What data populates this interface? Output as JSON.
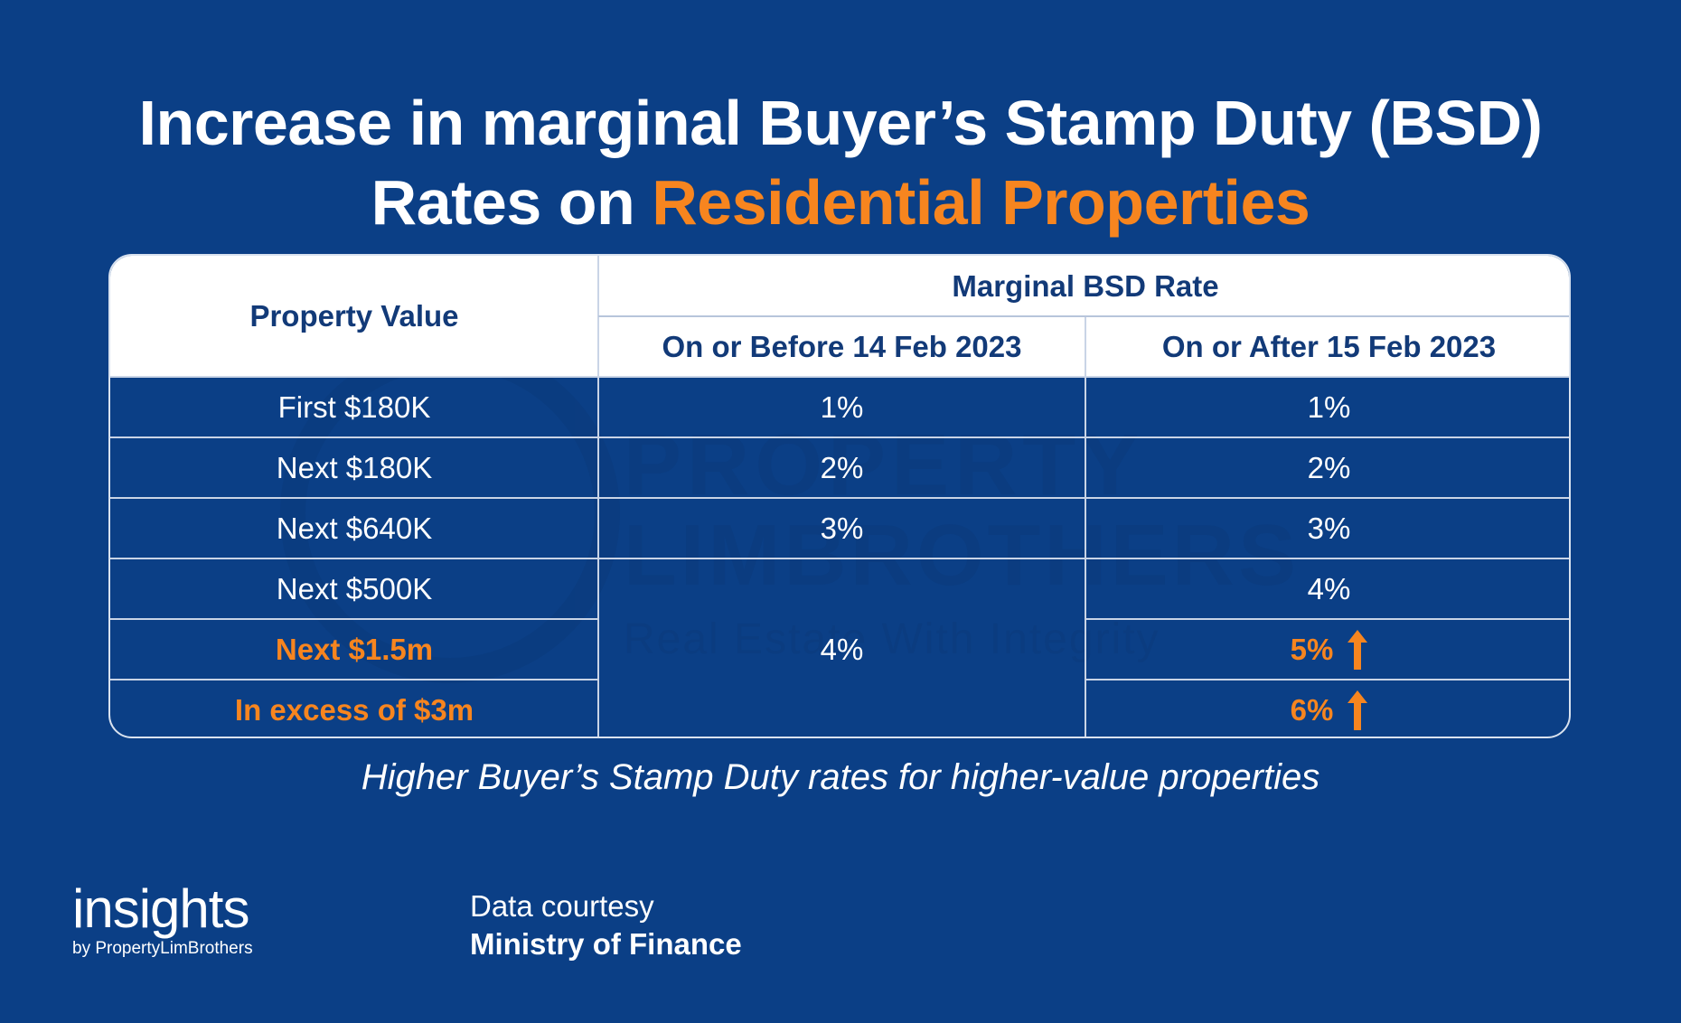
{
  "title": {
    "line1": "Increase in marginal Buyer’s Stamp Duty (BSD)",
    "line2_prefix": "Rates on ",
    "line2_accent": "Residential Properties"
  },
  "colors": {
    "background": "#0b3f86",
    "accent": "#f7851f",
    "header_text": "#123a78"
  },
  "watermark": {
    "line1": "PROPERTY",
    "line2": "LIMBROTHERS",
    "line3": "Real Estate With Integrity"
  },
  "chart_data": {
    "type": "table",
    "headers": {
      "property_value": "Property Value",
      "group": "Marginal BSD Rate",
      "before": "On or Before 14 Feb 2023",
      "after": "On or After 15 Feb 2023"
    },
    "rows": [
      {
        "property_value": "First $180K",
        "before": "1%",
        "after": "1%",
        "highlight": false
      },
      {
        "property_value": "Next $180K",
        "before": "2%",
        "after": "2%",
        "highlight": false
      },
      {
        "property_value": "Next $640K",
        "before": "3%",
        "after": "3%",
        "highlight": false
      },
      {
        "property_value": "Next $500K",
        "before": "4%",
        "after": "4%",
        "highlight": false
      },
      {
        "property_value": "Next $1.5m",
        "before": "4%",
        "after": "5%",
        "highlight": true
      },
      {
        "property_value": "In excess of $3m",
        "before": "4%",
        "after": "6%",
        "highlight": true
      }
    ],
    "merged_before_value": "4%"
  },
  "subtitle": "Higher Buyer’s Stamp Duty rates for higher-value properties",
  "logo": {
    "main": "insights",
    "sub": "by PropertyLimBrothers"
  },
  "credit": {
    "label": "Data courtesy",
    "source": "Ministry of Finance"
  }
}
